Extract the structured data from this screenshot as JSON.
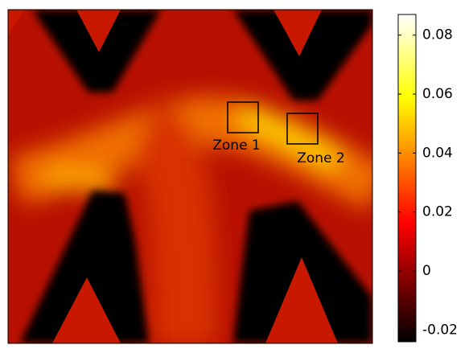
{
  "chart_data": {
    "type": "heatmap",
    "colormap": "hot",
    "clim": [
      -0.024,
      0.087
    ],
    "cticks": [
      -0.02,
      0,
      0.02,
      0.04,
      0.06,
      0.08
    ],
    "annotations": [
      {
        "text": "Zone 1"
      },
      {
        "text": "Zone 2"
      }
    ]
  }
}
